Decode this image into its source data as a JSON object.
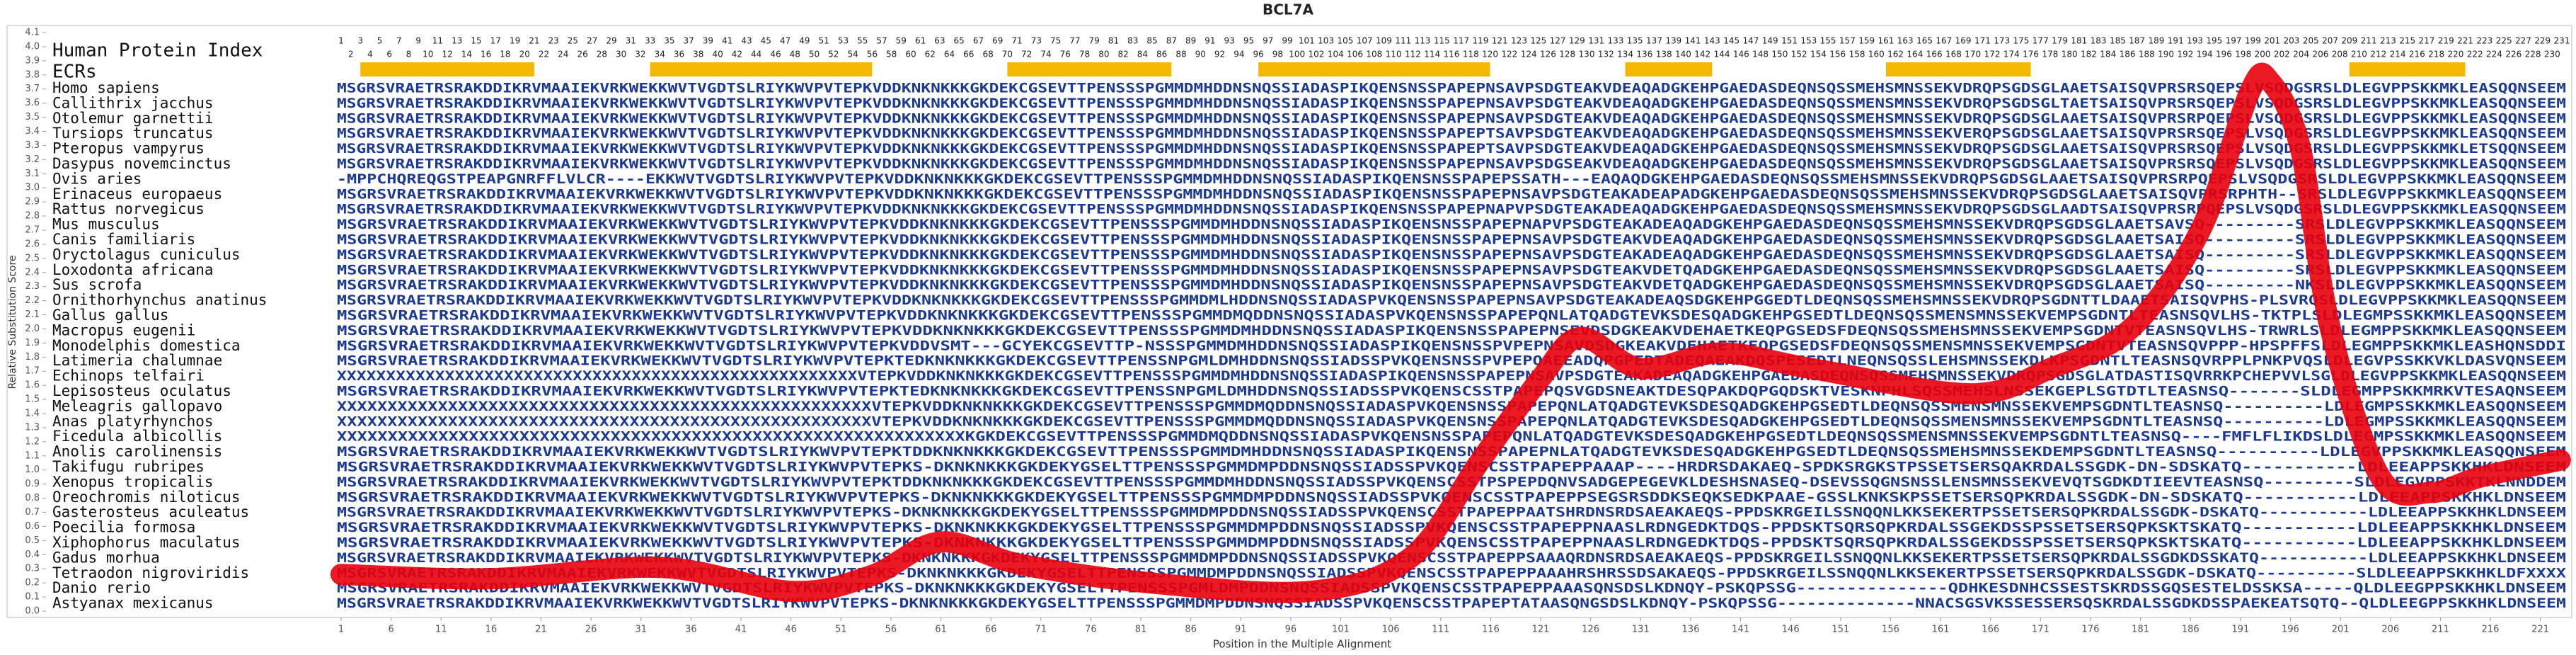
{
  "chart_data": {
    "type": "line",
    "title": "BCL7A",
    "x_label": "Position in the Multiple Alignment",
    "y_label": "Relative Substitution Score",
    "xlim": [
      1,
      224
    ],
    "ylim": [
      0,
      4.1
    ],
    "xticks": [
      1,
      6,
      11,
      16,
      21,
      26,
      31,
      36,
      41,
      46,
      51,
      56,
      61,
      66,
      71,
      76,
      81,
      86,
      91,
      96,
      101,
      106,
      111,
      116,
      121,
      126,
      131,
      136,
      141,
      146,
      151,
      156,
      161,
      166,
      171,
      176,
      181,
      186,
      191,
      196,
      201,
      206,
      211,
      216,
      221
    ],
    "yticks": [
      {
        "value": 0,
        "label": "0.0"
      },
      0.1,
      0.2,
      0.3,
      0.4,
      0.5,
      0.6,
      0.7,
      0.8,
      0.9,
      {
        "value": 1,
        "label": "1.0"
      },
      1.1,
      1.2,
      1.3,
      1.4,
      1.5,
      1.6,
      1.7,
      1.8,
      1.9,
      {
        "value": 2,
        "label": "2.0"
      },
      2.1,
      2.2,
      2.3,
      2.4,
      2.5,
      2.6,
      2.7,
      2.8,
      2.9,
      {
        "value": 3,
        "label": "3.0"
      },
      3.1,
      3.2,
      3.3,
      3.4,
      3.5,
      3.6,
      3.7,
      3.8,
      3.9,
      {
        "value": 4,
        "label": "4.0"
      },
      4.1
    ],
    "series": [
      {
        "color": "#e8000b",
        "x": [
          1,
          16,
          33,
          46,
          54,
          61,
          69,
          82,
          98,
          108,
          115,
          121,
          125,
          131,
          139,
          148,
          164,
          172,
          180,
          187,
          192,
          194,
          197,
          200,
          205,
          210,
          215,
          223
        ],
        "values": [
          0.26,
          0.23,
          0.31,
          0.14,
          0.25,
          0.49,
          0.33,
          0.2,
          0.14,
          0.38,
          1.07,
          1.65,
          1.94,
          1.72,
          1.83,
          1.72,
          1.54,
          1.72,
          2.0,
          2.7,
          3.69,
          3.75,
          3.28,
          2.0,
          0.95,
          0.84,
          0.95,
          1.07
        ]
      }
    ]
  },
  "alignment": {
    "index_label": "Human Protein Index",
    "ecr_label": "ECRs",
    "ecr_color": "#f5b800",
    "ecrs": [
      [
        3,
        21
      ],
      [
        33,
        56
      ],
      [
        70,
        87
      ],
      [
        96,
        120
      ],
      [
        134,
        143
      ],
      [
        161,
        176
      ],
      [
        209,
        221
      ]
    ],
    "human_protein_index": [
      1,
      2,
      3,
      4,
      5,
      6,
      7,
      8,
      9,
      10,
      11,
      12,
      13,
      14,
      15,
      16,
      17,
      18,
      19,
      20,
      21,
      22,
      23,
      24,
      25,
      26,
      27,
      28,
      29,
      30,
      31,
      32,
      33,
      34,
      35,
      36,
      37,
      38,
      39,
      40,
      41,
      42,
      43,
      44,
      45,
      46,
      47,
      48,
      49,
      50,
      51,
      52,
      53,
      54,
      55,
      56,
      57,
      58,
      59,
      60,
      61,
      62,
      63,
      64,
      65,
      66,
      67,
      68,
      69,
      70,
      71,
      72,
      73,
      74,
      75,
      76,
      77,
      78,
      79,
      80,
      81,
      82,
      83,
      84,
      85,
      86,
      87,
      88,
      89,
      90,
      91,
      92,
      93,
      94,
      95,
      96,
      97,
      98,
      99,
      100,
      101,
      102,
      103,
      104,
      105,
      106,
      107,
      108,
      109,
      110,
      111,
      112,
      113,
      114,
      115,
      116,
      117,
      118,
      119,
      120,
      121,
      122,
      123,
      124,
      125,
      126,
      127,
      128,
      129,
      130,
      131,
      132,
      133,
      134,
      135,
      136,
      137,
      138,
      139,
      140,
      141,
      142,
      143,
      144,
      145,
      146,
      147,
      148,
      149,
      150,
      151,
      152,
      153,
      154,
      155,
      156,
      157,
      158,
      159,
      160,
      161,
      162,
      163,
      164,
      165,
      166,
      167,
      168,
      169,
      170,
      171,
      172,
      173,
      174,
      175,
      176,
      177,
      178,
      179,
      180,
      181,
      182,
      183,
      184,
      185,
      186,
      187,
      188,
      189,
      190,
      191,
      192,
      193,
      194,
      195,
      196,
      197,
      198,
      199,
      200,
      201,
      202,
      203,
      204,
      205,
      206,
      207,
      208,
      209,
      210,
      211,
      212,
      213,
      214,
      215,
      216,
      217,
      218,
      219,
      220,
      221,
      222,
      223,
      224,
      225,
      226,
      227,
      228,
      229,
      230,
      231
    ],
    "rows": [
      {
        "species": "Homo sapiens",
        "sequence": "MSGRSVRAETRSRAKDDIKRVMAAIEKVRKWEKKWVTVGDTSLRIYKWVPVTEPKVDDKNKNKKKGKDEKCGSEVTTPENSSSPGMMDMHDDNSNQSSIADASPIKQENSNSSPAPEPNSAVPSDGTEAKVDEAQADGKEHPGAEDASDEQNSQSSMEHSMNSSEKVDRQPSGDSGLAAETSAISQVPRSRSQEPSLVSQDGSRSLDLEGVPPSKKMKLEASQQNSEEM"
      },
      {
        "species": "Callithrix jacchus",
        "sequence": "MSGRSVRAETRSRAKDDIKRVMAAIEKVRKWEKKWVTVGDTSLRIYKWVPVTEPKVDDKNKNKKKGKDEKCGSEVTTPENSSSPGMMDMHDDNSNQSSIADASPIKQENSNSSPAPEPNSAVPSDGTEAKVDEAQADGKEHPGAEDASDEQNSQSSMENSMNSSEKVDRQPSGDSGLTAETSAISQVPRSRSQEPSLVSQDGSRSLDLEGVPPSKKMKLEASQQNSEEM"
      },
      {
        "species": "Otolemur garnettii",
        "sequence": "MSGRSVRAETRSRAKDDIKRVMAAIEKVRKWEKKWVTVGDTSLRIYKWVPVTEPKVDDKNKNKKKGKDEKCGSEVTTPENSSSPGMMDMHDDNSNQSSIADASPIKQENSNSSPAPEPNSAVPSDGTEAKVDEAQADGKEHPGAEDASDEQNSQSSMEHSMNSSEKVDRQPSGDSGLAAETSAISQVPRSRPQEPSLVSQDGSRSLDLEGVPPSKKMKLEASQQNSEEM"
      },
      {
        "species": "Tursiops truncatus",
        "sequence": "MSGRSVRAETRSRAKDDIKRVMAAIEKVRKWEKKWVTVGDTSLRIYKWVPVTEPKVDDKNKNKKKGKDEKCGSEVTTPENSSSPGMMDMHDDNSNQSSIADASPIKQENSNSSPAPEPTSAVPSDGTEAKVDEAQADGKEHPGAEDASDEQNSQSSMEHSMNSSEKVERQPSGDSGLAAETSAISQVPRSRSQEPSLVSQDGSRSLDLEGVPPSKKMKLEASQQNSEEM"
      },
      {
        "species": "Pteropus vampyrus",
        "sequence": "MSGRSVRAETRSRAKDDIKRVMAAIEKVRKWEKKWVTVGDTSLRIYKWVPVTEPKVDDKNKNKKKGKDEKCGSEVTTPENSSSPGMMDMHDDNSNQSSIADASPIKQENSNSSPAPEPTSAVPSDGTEAKVDEAQADGKEHPGAEDASDEQNSQSSMEHSMNSSEKVDRQPSGDSGLAAETSAISQVPRSRSQEPSLVSQDGSRSLDLEGVPPSKKMKLETSQQNSEEM"
      },
      {
        "species": "Dasypus novemcinctus",
        "sequence": "MSGRSVRAETRSRAKDDIKRVMAAIEKVRKWEKKWVTVGDTSLRIYKWVPVTEPKVDDKNKNKKKGKDEKCGSEVTTPENSSSPGMMDMHDDNSNQSSIADASPIKQENSNSSPAPEPNSAVPSDGSEAKVDEAQADGKEHPGAEDASDEQNSQSSMEHSMNSSEKVDRQPSGDSGLAAETSAISQVPRSRSQEPSLVSQDGSRSLDLEGVPPSKKMKLEASQQNSEEM"
      },
      {
        "species": "Ovis aries",
        "sequence": "-MPPCHQREQGSTPEAPGNRFFLVLCR----EKKWVTVGDTSLRIYKWVPVTEPKVDDKNKNKKKGKDEKCGSEVTTPENSSSPGMMDMHDDNSNQSSIADASPIKQENSNSSPAPEPSSATH---EAQAQDGKEHPGAEDASDEQNSQSSMEHSMNSSEKVDRQPSGDSGLAAETSAISQVPRSRPQEPSLVSQDGSRSLDLEGVPPSKKMKLEASQQNSEEM"
      },
      {
        "species": "Erinaceus europaeus",
        "sequence": "MSGRSVRAETRSRAKDDIKRVMAAIEKVRKWEKKWVTVGDTSLRIYKWVPVTEPKVDDKNKNKKKGKDEKCGSEVTTPENSSSPGMMDMHDDNSNQSSIADASPIKQENSNSSPAPEPNSAVPSDGTEAKADEAPADGKEHPGAEDASDEQNSQSSMEHSMNSSEKVDRQPSGDSGLAAETSAISQVPRSRPHTH--SRSLDLEGVPPSKKMKLEASQQNSEEM"
      },
      {
        "species": "Rattus norvegicus",
        "sequence": "MSGRSVRAETRSRAKDDIKRVMAAIEKVRKWEKKWVTVGDTSLRIYKWVPVTEPKVDDKNKNKKKGKDEKCGSEVTTPENSSSPGMMDMHDDNSNQSSIADASPIKQENSNSSPAPEPNAPVPSDGTEAKADEAQADGKEHPGAEDASDEQNSQSSMEHSMNSSEKVDRQPSGDSGLAADTSAISQVPRSRPQEPSLVSQDGSRSLDLEGVPPSKKMKLEASQQNSEEM"
      },
      {
        "species": "Mus musculus",
        "sequence": "MSGRSVRAETRSRAKDDIKRVMAAIEKVRKWEKKWVTVGDTSLRIYKWVPVTEPKVDDKNKNKKKGKDEKCGSEVTTPENSSSPGMMDMHDDNSNQSSIADASPIKQENSNSSPAPEPNAPVPSDGTEAKADEAQADGKEHPGAEDASDEQNSQSSMEHSMNSSEKVDRQPSGDSGLAAETSAVSQ---------SRSLDLEGVPPSKKMKLEASQQNSEEM"
      },
      {
        "species": "Canis familiaris",
        "sequence": "MSGRSVRAETRSRAKDDIKRVMAAIEKVRKWEKKWVTVGDTSLRIYKWVPVTEPKVDDKNKNKKKGKDEKCGSEVTTPENSSSPGMMDMHDDNSNQSSIADASPIKQENSNSSPAPEPNSAVPSDGTEAKVDEAQADGKEHPGAEDASDEQNSQSSMEHSMNSSEKVDRQPSGDSGLAAETSAISQ---------SRSLDLEGVPPSKKMKLEASQQNSEEM"
      },
      {
        "species": "Oryctolagus cuniculus",
        "sequence": "MSGRSVRAETRSRAKDDIKRVMAAIEKVRKWEKKWVTVGDTSLRIYKWVPVTEPKVDDKNKNKKKGKDEKCGSEVTTPENSSSPGMMDMHDDNSNQSSIADASPIKQENSNSSPAPEPNSAVPSDGTEAKADEAQADGKEHPGAEDASDEQNSQSSMEHSMNSSEKVDRQPSGDSGLAAETSAISQ---------SRSLDLEGVPPSKKMKLEASQQNSEEM"
      },
      {
        "species": "Loxodonta africana",
        "sequence": "MSGRSVRAETRSRAKDDIKRVMAAIEKVRKWEKKWVTVGDTSLRIYKWVPVTEPKVDDKNKNKKKGKDEKCGSEVTTPENSSSPGMMDMHDDNSNQSSIADASPIKQENSNSSPAPEPNSAVPSDGTEAKVDETQADGKEHPGAEDASDEQNSQSSMEHSMNSSEKVDRQPSGDSGLAAETSAISQ---------SRSLDLEGVPPSKKMKLEASQQNSEEM"
      },
      {
        "species": "Sus scrofa",
        "sequence": "MSGRSVRAETRSRAKDDIKRVMAAIEKVRKWEKKWVTVGDTSLRIYKWVPVTEPKVDDKNKNKKKGKDEKCGSEVTTPENSSSPGMMDMHDDNSNQSSIADASPIKQENSNSSPAPEPNSAVPSDGTEAKVDETQADGKEHPGAEDASDEQNSQSSMEHSMNSSEKVDRQPSGDSGLAAETSAISQ---------NKSLDLEGVPPSKKMKLEASQQNSEEM"
      },
      {
        "species": "Ornithorhynchus anatinus",
        "sequence": "MSGRSVRAETRSRAKDDIKRVMAAIEKVRKWEKKWVTVGDTSLRIYKWVPVTEPKVDDKNKNKKKGKDEKCGSEVTTPENSSSPGMMDMLHDDNSNQSSIADASPVKQENSNSSPAPEPNSAVPSDGTEAKADEAQSDGKEHPGGEDTLDEQNSQSSMEHSMNSSEKVDRQPSGDNTTLDAAETSAISQVPHS-PLSVRQSLDLEGVPPSKKMKLEASQQNSEEM"
      },
      {
        "species": "Gallus gallus",
        "sequence": "MSGRSVRAETRSRAKDDIKRVMAAIEKVRKWEKKWVTVGDTSLRIYKWVPVTEPKVDDKNKNKKKGKDEKCGSEVTTPENSSSPGMMDMQDDNSNQSSIADASPVKQENSNSSPAPEPQNLATQADGTEVKSDESQADGKEHPGSEDTLDEQNSQSSMENSMNSSEKVEMPSGDNTLTEASNSQVLHS-TKTPLSLDLEGMPSSKKMKLEASQQNSEEM"
      },
      {
        "species": "Macropus eugenii",
        "sequence": "MSGRSVRAETRSRAKDDIKRVMAAIEKVRKWEKKWVTVGDTSLRIYKWVPVTEPKVDDKNKNKKKGKDEKCGSEVTTPENSSSPGMMDMHDDNSNQSSIADASPIKQENSNSSPAPEPNSEVDSDGKEAKVDEHAETKEQPGSEDSFDEQNSQSSMEHSMNSSEKVEMPSGDNTVTEASNSQVLHS-TRWRLSLDLEGMPPSKKMKLEASQQNSEEM"
      },
      {
        "species": "Monodelphis domestica",
        "sequence": "MSGRSVRAETRSRAKDDIKRVMAAIEKVRKWEKKWVTVGDTSLRIYKWVPVTEPKVDDVSMT---GCYEKCGSEVTTP-NSSSPGMMDMHDDNSNQSSIADASPIKQENSNSSPVPEPNSAVDSDGKEAKVDEHAETKEQPGSEDSFDEQNSQSSMENSMNSSEKVEMPSGDNTVTEASNSQVPPP-HPSPFFSLDLEGMPPSKKMKLEASHQNSDDI"
      },
      {
        "species": "Latimeria chalumnae",
        "sequence": "MSGRSVRAETRSRAKDDIKRVMAAIEKVRKWEKKWVTVGDTSLRIYKWVPVTEPKTEDKNKNKKKGKDEKCGSEVTTPENSSNPGMLDMHDDNSNQSSIADSSPVKQENSNSSPVPEPQAEEADQPGPEDTADEQAEAKDQSPESEDTLNEQNSQSSLEHSMNSSEKDLKPSGDNTLTEASNSQVRPPLPNKPVQSLDLEGVPSSKKVKLDASVQNSEEM"
      },
      {
        "species": "Echinops telfairi",
        "sequence": "XXXXXXXXXXXXXXXXXXXXXXXXXXXXXXXXXXXXXXXXXXXXXXXXXXXXXVTEPKVDDKNKNKKKGKDEKCGSEVTTPENSSSPGMMDMHDDNSNQSSIADASPIKQENSNSSPAPEPNSAVPSDGTEAKADEAQADGKEHPGAEDASDEQNSQSSMEHSMNSSEKVDRQPSGDSGLATDASTISQVRRKPCHEPVVLSGLDLEGVPPSKKMKLEASQQNSEEM"
      },
      {
        "species": "Lepisosteus oculatus",
        "sequence": "MSGRSVRAETRSRAKDDIKRVMAAIEKVRKWEKKWVTVGDTSLRIYKWVPVTEPKTEDKNKNKKKGKDEKCGSEVTTPENSSNPGMLDMHDDNSNQSSIADSSPVKQENSCSSTPAPEPQSVGDSNEAKTDESQPAKDQPGQDSKTVESKNPHLSQSSMEHSLNSSEKGEPLSGTDTLTEASNSQ-------SLDLEGMPPSKKMRKVTESAQNSEEM"
      },
      {
        "species": "Meleagris gallopavo",
        "sequence": "XXXXXXXXXXXXXXXXXXXXXXXXXXXXXXXXXXXXXXXXXXXXXXXXXXXXXVTEPKVDDKNKNKKKGKDEKCGSEVTTPENSSSPGMMDMQDDNSNQSSIADASPVKQENSNSSPAPEPQNLATQADGTEVKSDESQADGKEHPGSEDTLDEQNSQSSMENSMNSSEKVEMPSGDNTLTEASNSQ----------LDLEGMPSSKKMKLEASQQNSEEM"
      },
      {
        "species": "Anas platyrhynchos",
        "sequence": "XXXXXXXXXXXXXXXXXXXXXXXXXXXXXXXXXXXXXXXXXXXXXXXXXXXXXVTEPKVDDKNKNKKKGKDEKCGSEVTTPENSSSPGMMDMQDDNSNQSSIADASPVKQENSNSSPAPEPQNLATQADGTEVKSDESQADGKEHPGSEDTLDEQNSQSSMENSMNSSEKVEMPSGDNTLTEASNSQ----------LDLEGMPSSKKMKLEASQQNSEEM"
      },
      {
        "species": "Ficedula albicollis",
        "sequence": "XXXXXXXXXXXXXXXXXXXXXXXXXXXXXXXXXXXXXXXXXXXXXXXXXXXXXXXXXXXXXXKGKDEKCGSEVTTPENSSSPGMMDMQDDNSNQSSIADASPVKQENSNSSPAPEPQNLATQADGTEVKSDESQADGKEHPGSEDTLDEQNSQSSMENSMNSSEKVEMPSGDNTLTEASNSQ----FMFLFLIKDSLDLEGMPSSKKMKLEASQQNSEEM"
      },
      {
        "species": "Anolis carolinensis",
        "sequence": "MSGRSVRAETRSRAKDDIKRVMAAIEKVRKWEKKWVTVGDTSLRIYKWVPVTEPKTDDKNKNKKKGKDEKCGSEVTTPENSSSPGMMDMHDDNSNQSSIADASPIKQENSNSSPAPEPNLATQADGTEVKSDESQADGKEHPGSEDTLDEQNSQSSMEHSMNSSEKDEMPSGDNTLTEASNSQ----------LDLEGVPPSKKMKLEASQQNSEEM"
      },
      {
        "species": "Takifugu rubripes",
        "sequence": "MSGRSVRAETRSRAKDDIKRVMAAIEKVRKWEKKWVTVGDTSLRIYKWVPVTEPKS-DKNKNKKKGKDEKYGSELTTPENSSSPGMMDMPDDNSNQSSIADSSPVKQENSCSSTPAPEPPAAAP----HRDRSDAKAEQ-SPDKSRGKSTPSSETSERSQAKRDALSSGDK-DN-SDSKATQ-----------LDLEEAPPSKKHKLDNSEEM"
      },
      {
        "species": "Xenopus tropicalis",
        "sequence": "MSGRSVRAETRSRAKDDIKRVMAAIEKVRKWEKKWVTVGDTSLRIYKWVPVTEPKTDDKNKNKKKGKDEKCGSEVTTPENSSSPGMMDMHDDNSNQSSIADSSPVKQENSCSSTPSPEPDQNVSADGEPEGEVKLDESHSNASEQ-DSEVSSQGNSNSSLENSMNSSEKVEVQTSGDKDTIEEVTEASNSQ---------SLDLEGVPPSKKTKLNNDDEM"
      },
      {
        "species": "Oreochromis niloticus",
        "sequence": "MSGRSVRAETRSRAKDDIKRVMAAIEKVRKWEKKWVTVGDTSLRIYKWVPVTEPKS-DKNKNKKKGKDEKYGSELTTPENSSSPGMMDMPDDNSNQSSIADSSPVKQENSCSSTPAPEPPSEGSRSDDKSEQKSEDKPAAE-GSSLKNKSKPSSETSERSQPKRDALSSGDK-DN-SDSKATQ-----------LDLEEAPPSKKHKLDNSEEM"
      },
      {
        "species": "Gasterosteus aculeatus",
        "sequence": "MSGRSVRAETRSRAKDDIKRVMAAIEKVRKWEKKWVTVGDTSLRIYKWVPVTEPKS-DKNKNKKKGKDEKYGSELTTPENSSSPGMMDMPDDNSNQSSIADSSPVKQENSCSSTPAPEPPAATSHRDNSRDSAEAKAEQS-PPDSKRGEILSSNQQNLKKSEKERTPSSETSERSQPKRDALSSGDK-DSKATQ-----------LDLEEAPPSKKHKLDNSEEM"
      },
      {
        "species": "Poecilia formosa",
        "sequence": "MSGRSVRAETRSRAKDDIKRVMAAIEKVRKWEKKWVTVGDTSLRIYKWVPVTEPKS-DKNKNKKKGKDEKYGSELTTPENSSSPGMMDMPDDNSNQSSIADSSPVKQENSCSSTPAPEPPNAASLRDNGEDKTDQS-PPDSKTSQRSQPKRDALSSGEKDSSPSSETSERSQPKSKTSKATQ-----------LDLEEAPPSKKHKLDNSEEM"
      },
      {
        "species": "Xiphophorus maculatus",
        "sequence": "MSGRSVRAETRSRAKDDIKRVMAAIEKVRKWEKKWVTVGDTSLRIYKWVPVTEPKS-DKNKNKKKGKDEKYGSELTTPENSSSPGMMDMPDDNSNQSSIADSSPVKQENSCSSTPAPEPPNAASLRDNGEDKTDQS-PPDSKTSQRSQPKRDALSSGEKDSSPSSETSERSQPKSKTSKATQ-----------LDLEEAPPSKKHKLDNSEEM"
      },
      {
        "species": "Gadus morhua",
        "sequence": "MSGRSVRAETRSRAKDDIKRVMAAIEKVRKWEKKWVTVGDTSLRIYKWVPVTEPKS-DKNKNKKKGKDEKYGSELTTPENSSSPGMMDMPDDNSNQSSIADSSPVKQENSCSSTPAPEPPSAAAQRDNSRDSAEAKAEQS-PPDSKRGEILSSNQQNLKKSEKERTPSSETSERSQPKRDALSSGDKDSSKATQ-----------LDLEEAPPSKKHKLDNSEEM"
      },
      {
        "species": "Tetraodon nigroviridis",
        "sequence": "MSGRSVRAETRSRAKDDIKRVMAAIEKVRKWEKKWVTVGDTSLRIYKWVPVTEPKS-DKNKNKKKGKDEKYGSELTTPENSSSPGMMDMPDDNSNQSSIADSSPVKQENSCSSTPAPEPPAAAHRSHRSSDSAKAEQS-PPDSKRGEILSSNQQNLKKSEKERTPSSETSERSQPKRDALSSGDK-DSKATQ----------SLDLEEAPPSKKHKLDFXXXX"
      },
      {
        "species": "Danio rerio",
        "sequence": "MSGRSVRAETRSRAKDDIKRVMAAIEKVRKWEKKWVTVGDTSLRIYKWVPVTEPKS-DKNKNKKKGKDEKYGSELTTPENSSSPGMLDMPDDNSNQSSIADSSPVKQENSCSSTPAPEPPAAASQNSDSLKDNQY-PSKQPSSG---------------QDHKESDNHCSSESTSKRDSSGQSESTELDSSKSA-----QLDLEEGPPSKKHKLDNSEEM"
      },
      {
        "species": "Astyanax mexicanus",
        "sequence": "MSGRSVRAETRSRAKDDIKRVMAAIEKVRKWEKKWVTVGDTSLRIYKWVPVTEPKS-DKNKNKKKGKDEKYGSELTTPENSSSPGMMDMPDDNSNQSSIADSSPVKQENSCSSTPAPEPTATAASQNGSDSLKDNQY-PSKQPSSG--------------NNACSGSVKSSESSERSQSKRDALSSGDKDSSPAEKEATSQTQ--QLDLEEGPPSKKHKLDNSEEM"
      }
    ]
  }
}
